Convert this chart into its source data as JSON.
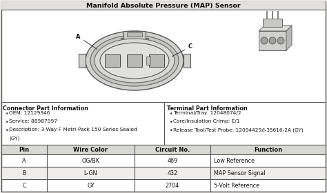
{
  "title": "Manifold Absolute Pressure (MAP) Sensor",
  "connector_info_title": "Connector Part Information",
  "connector_info_line1": "OEM: 12129946",
  "connector_info_line2": "Service: 88987997",
  "connector_info_line3": "Description: 3-Way F Metri-Pack 150 Series Sealed",
  "connector_info_line3b": "(GY)",
  "terminal_info_title": "Terminal Part Information",
  "terminal_info_line1": "Terminal/Tray: 12048074/2",
  "terminal_info_line2": "Core/Insulation Crimp: E/1",
  "terminal_info_line3": "Release Tool/Test Probe: 12094429/J-35616-2A (GY)",
  "table_headers": [
    "Pin",
    "Wire Color",
    "Circuit No.",
    "Function"
  ],
  "table_rows": [
    [
      "A",
      "OG/BK",
      "469",
      "Low Reference"
    ],
    [
      "B",
      "L-GN",
      "432",
      "MAP Sensor Signal"
    ],
    [
      "C",
      "GY",
      "2704",
      "5-Volt Reference"
    ]
  ],
  "bg_color": "#f0ede8",
  "border_color": "#555555",
  "diagram_bg": "#ffffff",
  "table_alt_bg": "#f8f8f8"
}
